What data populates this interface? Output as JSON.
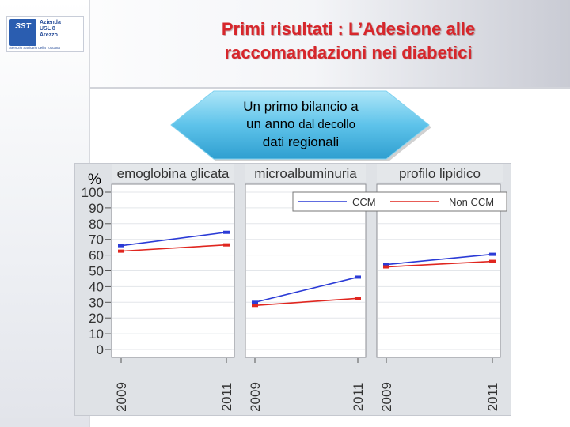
{
  "logo": {
    "mark": "SST",
    "text_lines": [
      "Azienda",
      "USL 8",
      "Arezzo"
    ],
    "subtitle": "Servizio Sanitario della Toscana"
  },
  "slide_title": {
    "line1": "Primi risultati : L’Adesione alle",
    "line2": "raccomandazioni nei diabetici"
  },
  "callout": {
    "line1": "Un primo bilancio a",
    "line2_a": "un anno ",
    "line2_b": "dal decollo",
    "line3": "dati regionali"
  },
  "colors": {
    "ccm": "#2b3bd6",
    "non_ccm": "#e0261f",
    "title_red": "#d7262b",
    "callout_fill": "#5ec3ea"
  },
  "chart_data": {
    "type": "line",
    "ylabel": "%",
    "ylim": [
      0,
      100
    ],
    "yticks": [
      0,
      10,
      20,
      30,
      40,
      50,
      60,
      70,
      80,
      90,
      100
    ],
    "x": [
      "2009",
      "2011"
    ],
    "grid": true,
    "legend": {
      "position": "top-right",
      "entries": [
        "CCM",
        "Non CCM"
      ]
    },
    "panels": [
      {
        "title": "emoglobina glicata",
        "series": [
          {
            "name": "CCM",
            "values": [
              66,
              74.5
            ]
          },
          {
            "name": "Non CCM",
            "values": [
              62.5,
              66.5
            ]
          }
        ]
      },
      {
        "title": "microalbuminuria",
        "series": [
          {
            "name": "CCM",
            "values": [
              30,
              46
            ]
          },
          {
            "name": "Non CCM",
            "values": [
              28,
              32.5
            ]
          }
        ]
      },
      {
        "title": "profilo lipidico",
        "series": [
          {
            "name": "CCM",
            "values": [
              54,
              60.5
            ]
          },
          {
            "name": "Non CCM",
            "values": [
              52.5,
              56
            ]
          }
        ]
      }
    ]
  }
}
